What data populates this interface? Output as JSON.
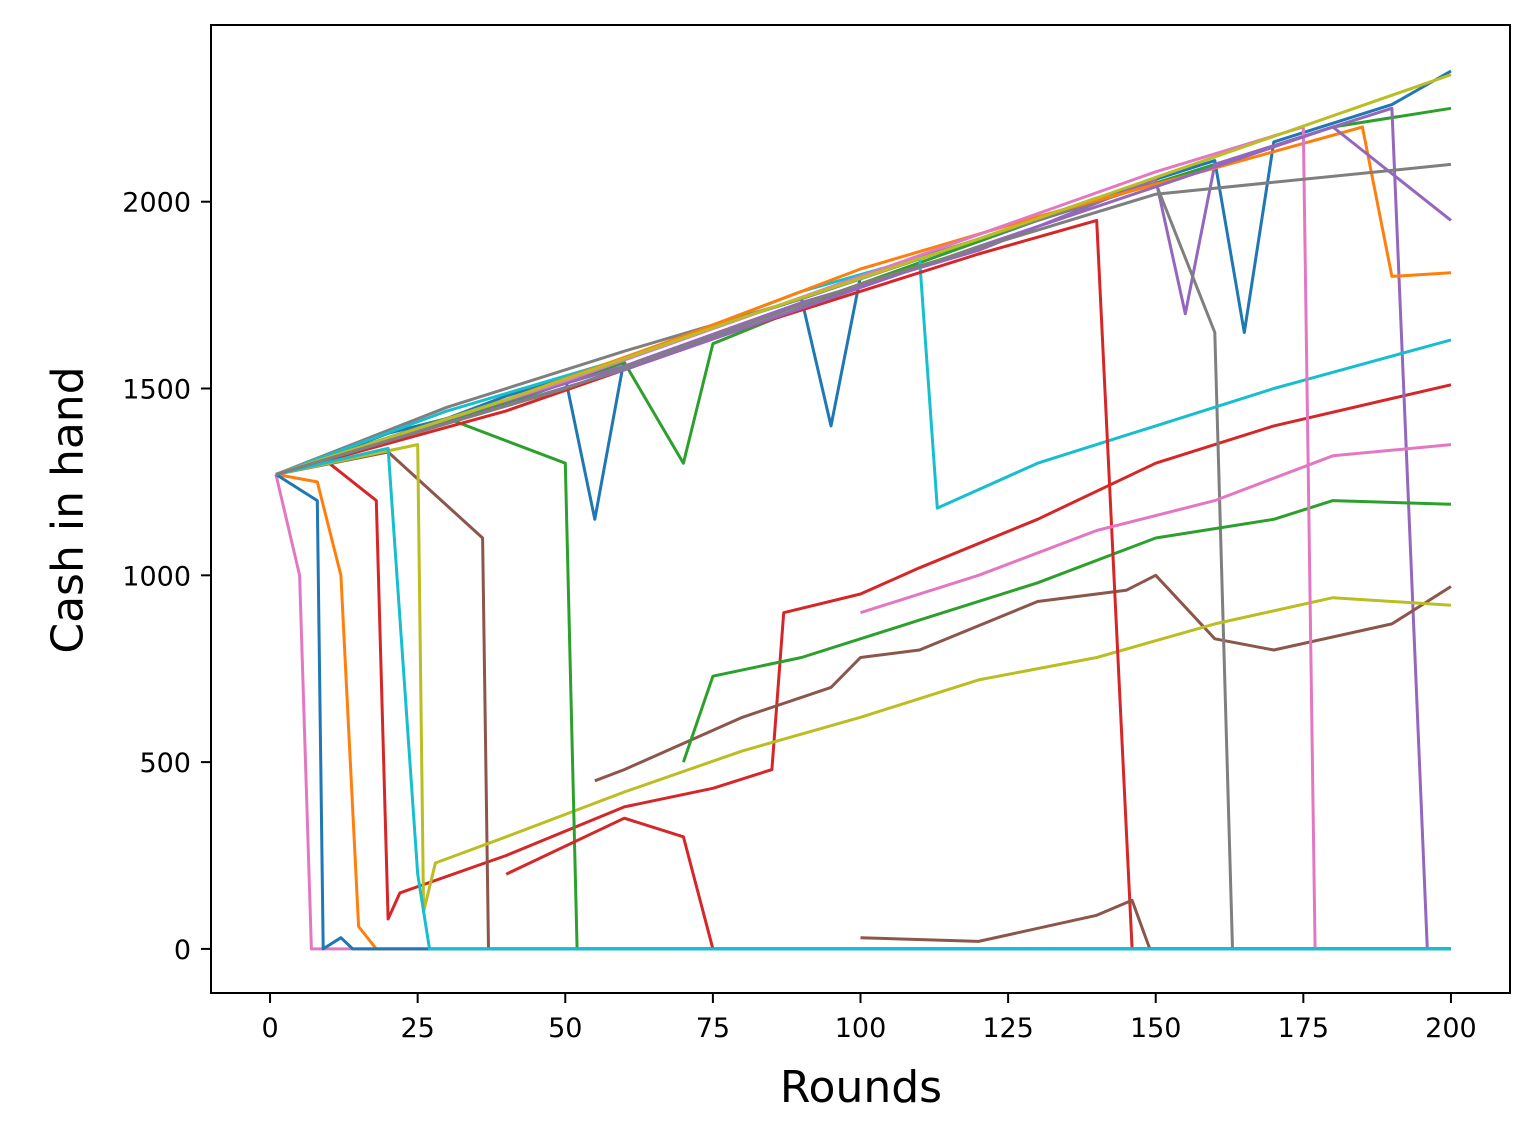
{
  "chart_data": {
    "type": "line",
    "title": "",
    "xlabel": "Rounds",
    "ylabel": "Cash in hand",
    "xlim": [
      -10,
      210
    ],
    "ylim": [
      -118,
      2473
    ],
    "xticks": [
      0,
      25,
      50,
      75,
      100,
      125,
      150,
      175,
      200
    ],
    "yticks": [
      0,
      500,
      1000,
      1500,
      2000
    ],
    "grid": false,
    "legend": "none",
    "colors": [
      "#1f77b4",
      "#ff7f0e",
      "#2ca02c",
      "#d62728",
      "#9467bd",
      "#8c564b",
      "#e377c2",
      "#7f7f7f",
      "#bcbd22",
      "#17becf"
    ],
    "series": [
      {
        "color": "#1f77b4",
        "points": [
          [
            1,
            1270
          ],
          [
            10,
            1320
          ],
          [
            20,
            1380
          ],
          [
            30,
            1420
          ],
          [
            40,
            1480
          ],
          [
            50,
            1530
          ],
          [
            55,
            1150
          ],
          [
            60,
            1580
          ],
          [
            80,
            1690
          ],
          [
            90,
            1740
          ],
          [
            95,
            1400
          ],
          [
            100,
            1800
          ],
          [
            120,
            1900
          ],
          [
            140,
            2010
          ],
          [
            160,
            2110
          ],
          [
            165,
            1650
          ],
          [
            170,
            2160
          ],
          [
            190,
            2260
          ],
          [
            200,
            2350
          ]
        ]
      },
      {
        "color": "#ff7f0e",
        "points": [
          [
            1,
            1270
          ],
          [
            8,
            1250
          ],
          [
            12,
            1000
          ],
          [
            15,
            60
          ],
          [
            18,
            0
          ],
          [
            200,
            0
          ]
        ]
      },
      {
        "color": "#2ca02c",
        "points": [
          [
            1,
            1270
          ],
          [
            20,
            1360
          ],
          [
            40,
            1460
          ],
          [
            60,
            1570
          ],
          [
            70,
            1300
          ],
          [
            75,
            1620
          ],
          [
            100,
            1780
          ],
          [
            130,
            1950
          ],
          [
            160,
            2100
          ],
          [
            180,
            2200
          ],
          [
            200,
            2250
          ]
        ]
      },
      {
        "color": "#d62728",
        "points": [
          [
            1,
            1270
          ],
          [
            10,
            1300
          ],
          [
            18,
            1200
          ],
          [
            20,
            80
          ],
          [
            22,
            150
          ],
          [
            40,
            250
          ],
          [
            60,
            380
          ],
          [
            75,
            430
          ],
          [
            85,
            480
          ],
          [
            87,
            900
          ],
          [
            100,
            950
          ],
          [
            110,
            1020
          ],
          [
            130,
            1150
          ],
          [
            150,
            1300
          ],
          [
            170,
            1400
          ],
          [
            200,
            1510
          ]
        ]
      },
      {
        "color": "#9467bd",
        "points": [
          [
            1,
            1270
          ],
          [
            30,
            1420
          ],
          [
            60,
            1560
          ],
          [
            90,
            1730
          ],
          [
            120,
            1870
          ],
          [
            150,
            2060
          ],
          [
            155,
            1700
          ],
          [
            160,
            2100
          ],
          [
            190,
            2250
          ],
          [
            196,
            0
          ],
          [
            200,
            0
          ]
        ]
      },
      {
        "color": "#8c564b",
        "points": [
          [
            1,
            1270
          ],
          [
            20,
            1330
          ],
          [
            36,
            1100
          ],
          [
            37,
            0
          ],
          [
            200,
            0
          ]
        ]
      },
      {
        "color": "#8c564b",
        "points": [
          [
            55,
            450
          ],
          [
            60,
            480
          ],
          [
            80,
            620
          ],
          [
            95,
            700
          ],
          [
            100,
            780
          ],
          [
            110,
            800
          ],
          [
            130,
            930
          ],
          [
            145,
            960
          ],
          [
            150,
            1000
          ],
          [
            160,
            830
          ],
          [
            170,
            800
          ],
          [
            190,
            870
          ],
          [
            200,
            970
          ]
        ]
      },
      {
        "color": "#e377c2",
        "points": [
          [
            1,
            1270
          ],
          [
            5,
            1000
          ],
          [
            7,
            0
          ],
          [
            200,
            0
          ]
        ]
      },
      {
        "color": "#7f7f7f",
        "points": [
          [
            1,
            1270
          ],
          [
            30,
            1450
          ],
          [
            60,
            1600
          ],
          [
            90,
            1740
          ],
          [
            120,
            1900
          ],
          [
            150,
            2050
          ],
          [
            160,
            1650
          ],
          [
            163,
            0
          ],
          [
            200,
            0
          ]
        ]
      },
      {
        "color": "#bcbd22",
        "points": [
          [
            1,
            1270
          ],
          [
            25,
            1350
          ],
          [
            26,
            100
          ],
          [
            28,
            230
          ],
          [
            40,
            300
          ],
          [
            60,
            420
          ],
          [
            80,
            530
          ],
          [
            100,
            620
          ],
          [
            120,
            720
          ],
          [
            140,
            780
          ],
          [
            160,
            870
          ],
          [
            180,
            940
          ],
          [
            200,
            920
          ]
        ]
      },
      {
        "color": "#17becf",
        "points": [
          [
            1,
            1270
          ],
          [
            30,
            1440
          ],
          [
            60,
            1580
          ],
          [
            90,
            1760
          ],
          [
            110,
            1850
          ],
          [
            113,
            1180
          ],
          [
            130,
            1300
          ],
          [
            150,
            1400
          ],
          [
            170,
            1500
          ],
          [
            200,
            1630
          ]
        ]
      },
      {
        "color": "#1f77b4",
        "points": [
          [
            1,
            1270
          ],
          [
            8,
            1200
          ],
          [
            9,
            0
          ],
          [
            12,
            30
          ],
          [
            14,
            0
          ],
          [
            200,
            0
          ]
        ]
      },
      {
        "color": "#ff7f0e",
        "points": [
          [
            1,
            1270
          ],
          [
            40,
            1470
          ],
          [
            70,
            1640
          ],
          [
            100,
            1820
          ],
          [
            130,
            1960
          ],
          [
            160,
            2090
          ],
          [
            185,
            2200
          ],
          [
            190,
            1800
          ],
          [
            200,
            1810
          ]
        ]
      },
      {
        "color": "#2ca02c",
        "points": [
          [
            1,
            1270
          ],
          [
            30,
            1420
          ],
          [
            50,
            1300
          ],
          [
            52,
            0
          ],
          [
            200,
            0
          ]
        ]
      },
      {
        "color": "#2ca02c",
        "points": [
          [
            70,
            500
          ],
          [
            75,
            730
          ],
          [
            90,
            780
          ],
          [
            110,
            880
          ],
          [
            130,
            980
          ],
          [
            150,
            1100
          ],
          [
            170,
            1150
          ],
          [
            180,
            1200
          ],
          [
            200,
            1190
          ]
        ]
      },
      {
        "color": "#d62728",
        "points": [
          [
            1,
            1270
          ],
          [
            40,
            1440
          ],
          [
            80,
            1660
          ],
          [
            120,
            1860
          ],
          [
            140,
            1950
          ],
          [
            146,
            0
          ],
          [
            200,
            0
          ]
        ]
      },
      {
        "color": "#e377c2",
        "points": [
          [
            1,
            1270
          ],
          [
            50,
            1520
          ],
          [
            100,
            1800
          ],
          [
            150,
            2080
          ],
          [
            175,
            2200
          ],
          [
            177,
            0
          ],
          [
            200,
            0
          ]
        ]
      },
      {
        "color": "#bcbd22",
        "points": [
          [
            1,
            1270
          ],
          [
            40,
            1470
          ],
          [
            80,
            1690
          ],
          [
            120,
            1900
          ],
          [
            160,
            2120
          ],
          [
            200,
            2340
          ]
        ]
      },
      {
        "color": "#17becf",
        "points": [
          [
            1,
            1270
          ],
          [
            20,
            1340
          ],
          [
            25,
            200
          ],
          [
            27,
            0
          ],
          [
            200,
            0
          ]
        ]
      },
      {
        "color": "#e377c2",
        "points": [
          [
            100,
            900
          ],
          [
            120,
            1000
          ],
          [
            140,
            1120
          ],
          [
            160,
            1200
          ],
          [
            180,
            1320
          ],
          [
            200,
            1350
          ]
        ]
      },
      {
        "color": "#d62728",
        "points": [
          [
            40,
            200
          ],
          [
            60,
            350
          ],
          [
            70,
            300
          ],
          [
            75,
            0
          ]
        ]
      },
      {
        "color": "#8c564b",
        "points": [
          [
            100,
            30
          ],
          [
            120,
            20
          ],
          [
            140,
            90
          ],
          [
            146,
            130
          ],
          [
            149,
            0
          ]
        ]
      },
      {
        "color": "#9467bd",
        "points": [
          [
            1,
            1270
          ],
          [
            60,
            1550
          ],
          [
            120,
            1880
          ],
          [
            180,
            2200
          ],
          [
            200,
            1950
          ]
        ]
      },
      {
        "color": "#7f7f7f",
        "points": [
          [
            1,
            1270
          ],
          [
            50,
            1500
          ],
          [
            100,
            1780
          ],
          [
            150,
            2020
          ],
          [
            200,
            2100
          ]
        ]
      },
      {
        "color": "#17becf",
        "points": [
          [
            66,
            0
          ],
          [
            200,
            0
          ]
        ]
      }
    ]
  }
}
